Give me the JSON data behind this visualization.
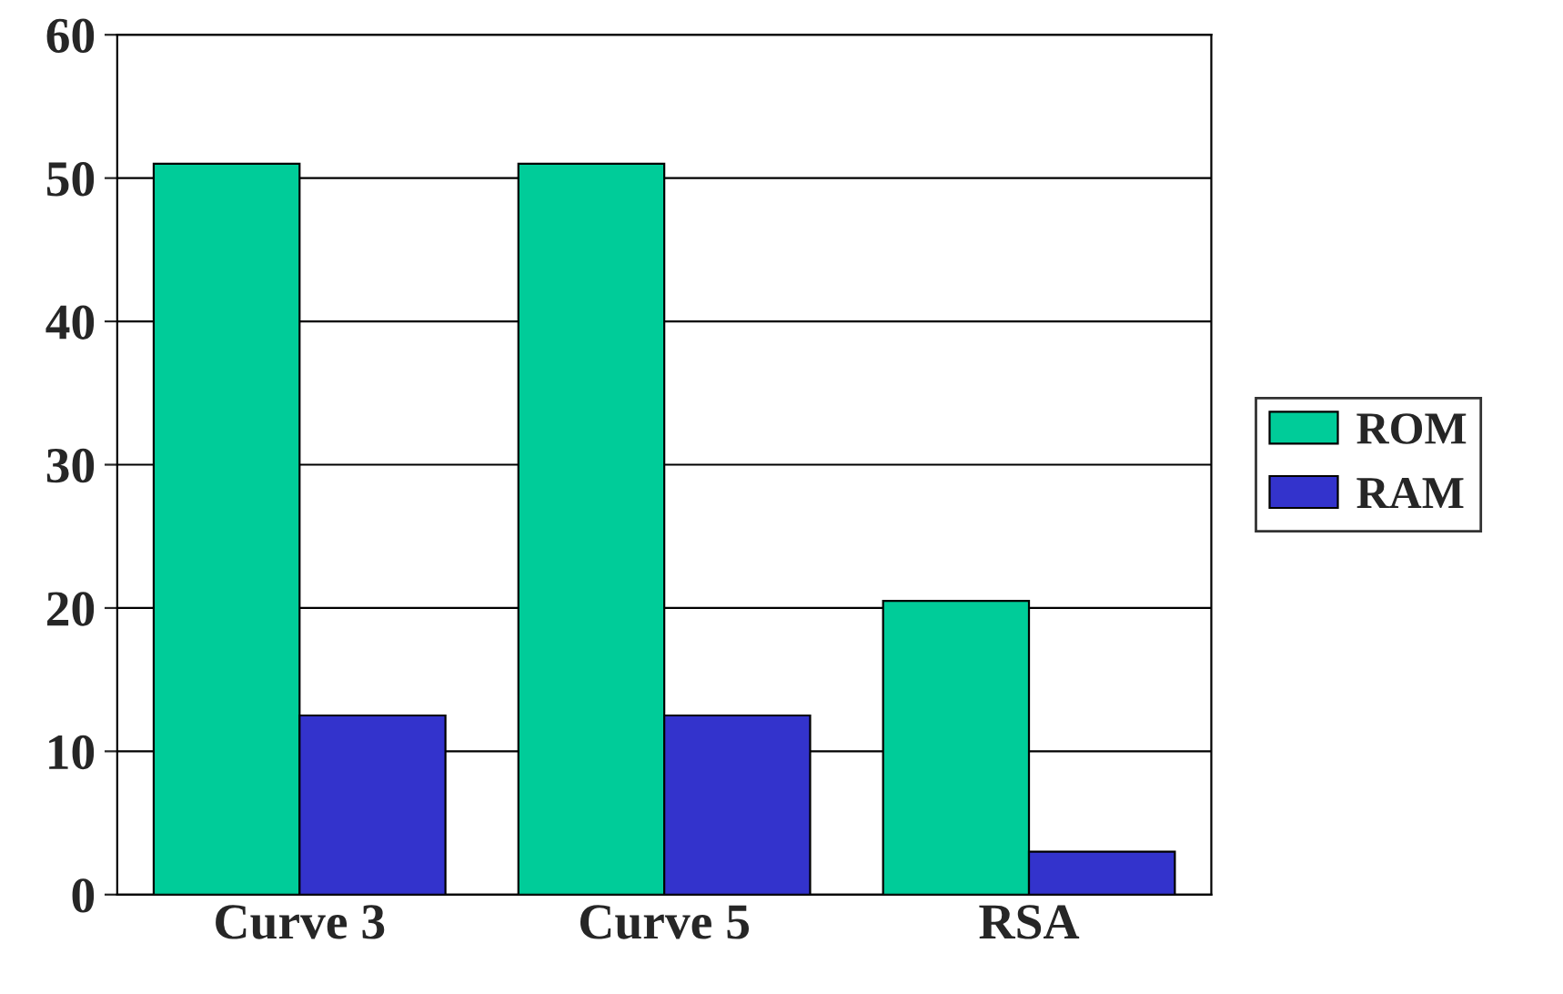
{
  "chart_data": {
    "type": "bar",
    "categories": [
      "Curve 3",
      "Curve 5",
      "RSA"
    ],
    "series": [
      {
        "name": "ROM",
        "color": "#00cc99",
        "values": [
          51,
          51,
          20.5
        ]
      },
      {
        "name": "RAM",
        "color": "#3333cc",
        "values": [
          12.5,
          12.5,
          3
        ]
      }
    ],
    "ylim": [
      0,
      60
    ],
    "yticks": [
      0,
      10,
      20,
      30,
      40,
      50,
      60
    ],
    "grid": "y",
    "legend": "right"
  }
}
